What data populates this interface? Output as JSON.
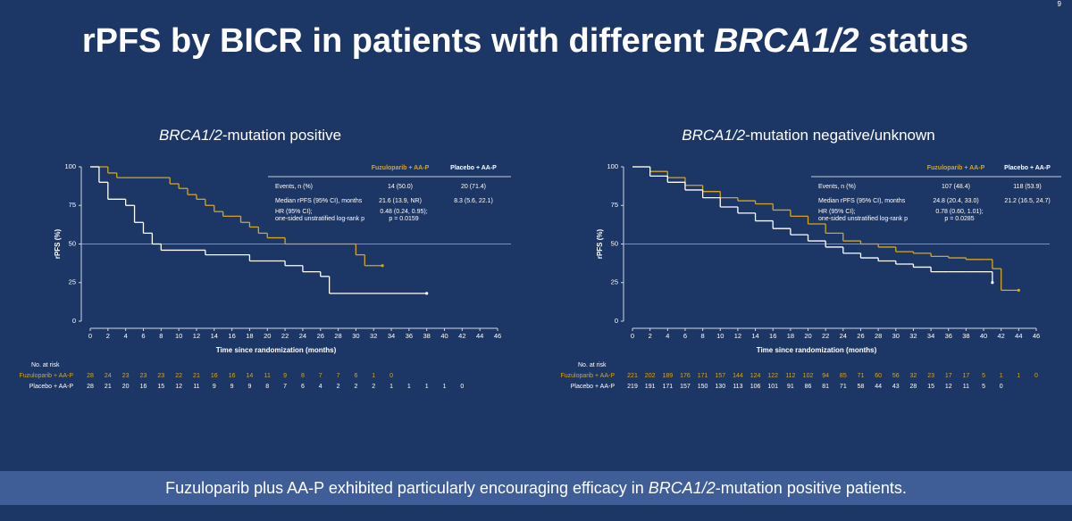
{
  "slide": {
    "title": [
      "rPFS by BICR in patients with different ",
      "BRCA1/2",
      " status"
    ],
    "page_number": "9",
    "footer": [
      "Fuzuloparib plus AA-P exhibited particularly encouraging efficacy in ",
      "BRCA1/2",
      "-mutation positive patients."
    ]
  },
  "chart_data": [
    {
      "type": "step",
      "title": [
        "BRCA1/2",
        "-mutation positive"
      ],
      "x_label": "Time since randomization (months)",
      "y_label": "rPFS (%)",
      "xlim": [
        0,
        46
      ],
      "xticks": [
        0,
        2,
        4,
        6,
        8,
        10,
        12,
        14,
        16,
        18,
        20,
        22,
        24,
        26,
        28,
        30,
        32,
        34,
        36,
        38,
        40,
        42,
        44,
        46
      ],
      "ylim": [
        0,
        100
      ],
      "yticks": [
        0,
        25,
        50,
        75,
        100
      ],
      "reference_y": 50,
      "series": [
        {
          "name": "Fuzuloparib + AA-P",
          "color": "#d6a51f",
          "x": [
            0,
            2,
            3,
            9,
            10,
            11,
            12,
            13,
            14,
            15,
            17,
            18,
            19,
            20,
            22,
            30,
            31,
            33
          ],
          "values": [
            100,
            96,
            93,
            89,
            86,
            82,
            79,
            75,
            71,
            68,
            64,
            61,
            57,
            54,
            50,
            43,
            36,
            36
          ]
        },
        {
          "name": "Placebo + AA-P",
          "color": "#ffffff",
          "x": [
            0,
            1,
            2,
            4,
            5,
            6,
            7,
            8,
            13,
            18,
            22,
            24,
            26,
            27,
            38
          ],
          "values": [
            100,
            90,
            79,
            75,
            64,
            57,
            50,
            46,
            43,
            39,
            36,
            32,
            29,
            18,
            18
          ]
        }
      ],
      "stats": {
        "rows": [
          {
            "label": [
              "Events, n (%)"
            ],
            "values": [
              [
                "14 (50.0)"
              ],
              [
                "20 (71.4)"
              ]
            ]
          },
          {
            "label": [
              "Median rPFS (95% CI), months"
            ],
            "values": [
              [
                "21.6 (13.9, NR)"
              ],
              [
                "8.3 (5.6, 22.1)"
              ]
            ]
          },
          {
            "label": [
              "HR (95% CI);",
              "one-sided unstratified log-rank p"
            ],
            "values": [
              [
                "0.48 (0.24, 0.95);",
                "p = 0.0159"
              ]
            ]
          }
        ]
      },
      "at_risk": {
        "title": "No. at risk",
        "rows": [
          [
            "28",
            "24",
            "23",
            "23",
            "23",
            "22",
            "21",
            "16",
            "16",
            "14",
            "11",
            "9",
            "8",
            "7",
            "7",
            "6",
            "1",
            "0"
          ],
          [
            "28",
            "21",
            "20",
            "16",
            "15",
            "12",
            "11",
            "9",
            "9",
            "9",
            "8",
            "7",
            "6",
            "4",
            "2",
            "2",
            "2",
            "1",
            "1",
            "1",
            "1",
            "0"
          ]
        ]
      }
    },
    {
      "type": "step",
      "title": [
        "BRCA1/2",
        "-mutation negative/unknown"
      ],
      "x_label": "Time since randomization (months)",
      "y_label": "rPFS (%)",
      "xlim": [
        0,
        46
      ],
      "xticks": [
        0,
        2,
        4,
        6,
        8,
        10,
        12,
        14,
        16,
        18,
        20,
        22,
        24,
        26,
        28,
        30,
        32,
        34,
        36,
        38,
        40,
        42,
        44,
        46
      ],
      "ylim": [
        0,
        100
      ],
      "yticks": [
        0,
        25,
        50,
        75,
        100
      ],
      "reference_y": 50,
      "series": [
        {
          "name": "Fuzuloparib + AA-P",
          "color": "#d6a51f",
          "x": [
            0,
            2,
            4,
            6,
            8,
            10,
            12,
            14,
            16,
            18,
            20,
            22,
            24,
            26,
            28,
            30,
            32,
            34,
            36,
            38,
            40,
            41,
            42,
            44
          ],
          "values": [
            100,
            97,
            93,
            88,
            84,
            80,
            78,
            76,
            72,
            68,
            63,
            57,
            52,
            50,
            48,
            45,
            44,
            42,
            41,
            40,
            40,
            34,
            20,
            20
          ]
        },
        {
          "name": "Placebo + AA-P",
          "color": "#ffffff",
          "x": [
            0,
            2,
            4,
            6,
            8,
            10,
            12,
            14,
            16,
            18,
            20,
            22,
            24,
            26,
            28,
            30,
            32,
            34,
            36,
            38,
            40,
            41
          ],
          "values": [
            100,
            94,
            90,
            85,
            80,
            74,
            70,
            65,
            60,
            56,
            52,
            48,
            44,
            41,
            39,
            37,
            35,
            32,
            32,
            32,
            32,
            25
          ]
        }
      ],
      "stats": {
        "rows": [
          {
            "label": [
              "Events, n (%)"
            ],
            "values": [
              [
                "107 (48.4)"
              ],
              [
                "118 (53.9)"
              ]
            ]
          },
          {
            "label": [
              "Median rPFS (95% CI), months"
            ],
            "values": [
              [
                "24.8 (20.4, 33.0)"
              ],
              [
                "21.2 (16.5, 24.7)"
              ]
            ]
          },
          {
            "label": [
              "HR (95% CI);",
              "one-sided unstratified log-rank p"
            ],
            "values": [
              [
                "0.78 (0.60, 1.01);",
                "p = 0.0285"
              ]
            ]
          }
        ]
      },
      "at_risk": {
        "title": "No. at risk",
        "rows": [
          [
            "221",
            "202",
            "189",
            "176",
            "171",
            "157",
            "144",
            "124",
            "122",
            "112",
            "102",
            "94",
            "85",
            "71",
            "60",
            "56",
            "32",
            "23",
            "17",
            "17",
            "5",
            "1",
            "1",
            "0"
          ],
          [
            "219",
            "191",
            "171",
            "157",
            "150",
            "130",
            "113",
            "106",
            "101",
            "91",
            "86",
            "81",
            "71",
            "58",
            "44",
            "43",
            "28",
            "15",
            "12",
            "11",
            "5",
            "0"
          ]
        ]
      }
    }
  ]
}
